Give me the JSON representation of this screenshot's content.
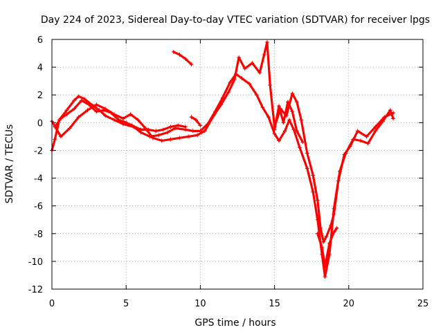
{
  "chart_data": {
    "type": "line",
    "title": "Day 224 of 2023, Sidereal Day-to-day VTEC variation (SDTVAR) for receiver lpgs",
    "xlabel": "GPS time / hours",
    "ylabel": "SDTVAR / TECUs",
    "xlim": [
      0,
      25
    ],
    "ylim": [
      -12,
      6
    ],
    "xticks": [
      0,
      5,
      10,
      15,
      20,
      25
    ],
    "yticks": [
      -12,
      -10,
      -8,
      -6,
      -4,
      -2,
      0,
      2,
      4,
      6
    ],
    "grid": true,
    "marker": "+",
    "color": "#ff0000",
    "series": [
      {
        "name": "trace-1",
        "points": [
          [
            0,
            -2.0
          ],
          [
            0.2,
            -1.2
          ],
          [
            0.5,
            0.2
          ],
          [
            1.0,
            0.9
          ],
          [
            1.5,
            1.6
          ],
          [
            1.8,
            1.9
          ],
          [
            2.2,
            1.7
          ],
          [
            2.8,
            1.2
          ],
          [
            3.2,
            0.9
          ],
          [
            3.6,
            0.5
          ],
          [
            4.2,
            0.2
          ],
          [
            4.8,
            -0.1
          ],
          [
            5.5,
            -0.3
          ],
          [
            6.0,
            -0.7
          ],
          [
            6.6,
            -1.0
          ],
          [
            7.2,
            -0.9
          ],
          [
            7.8,
            -0.7
          ],
          [
            8.3,
            -0.4
          ],
          [
            9.0,
            -0.5
          ],
          [
            9.5,
            -0.6
          ],
          [
            10.0,
            -0.6
          ],
          [
            10.5,
            -0.1
          ],
          [
            11.0,
            0.8
          ],
          [
            11.5,
            1.8
          ],
          [
            12.0,
            2.9
          ],
          [
            12.4,
            3.5
          ],
          [
            12.8,
            3.2
          ],
          [
            13.3,
            2.8
          ],
          [
            13.8,
            2.0
          ],
          [
            14.2,
            1.1
          ],
          [
            14.6,
            0.4
          ],
          [
            15.0,
            -0.8
          ],
          [
            15.3,
            -1.3
          ],
          [
            15.7,
            -0.6
          ],
          [
            16.0,
            0.2
          ],
          [
            16.3,
            -0.5
          ],
          [
            16.7,
            -1.8
          ],
          [
            17.2,
            -3.3
          ],
          [
            17.6,
            -5.0
          ],
          [
            17.9,
            -7.0
          ],
          [
            18.2,
            -9.5
          ],
          [
            18.4,
            -11.1
          ],
          [
            18.7,
            -9.5
          ],
          [
            19.0,
            -6.2
          ],
          [
            19.4,
            -3.5
          ],
          [
            19.8,
            -2.2
          ],
          [
            20.3,
            -1.2
          ],
          [
            20.8,
            -1.3
          ],
          [
            21.3,
            -1.5
          ],
          [
            21.8,
            -0.6
          ],
          [
            22.3,
            0.1
          ],
          [
            22.8,
            0.9
          ],
          [
            23.0,
            0.3
          ]
        ]
      },
      {
        "name": "trace-2",
        "points": [
          [
            0,
            0.1
          ],
          [
            0.6,
            -1.0
          ],
          [
            1.2,
            -0.4
          ],
          [
            1.8,
            0.4
          ],
          [
            2.4,
            0.9
          ],
          [
            3.0,
            1.3
          ],
          [
            3.6,
            1.0
          ],
          [
            4.2,
            0.6
          ],
          [
            4.8,
            0.3
          ],
          [
            5.3,
            0.6
          ],
          [
            5.8,
            0.2
          ],
          [
            6.3,
            -0.4
          ],
          [
            6.8,
            -1.1
          ],
          [
            7.4,
            -1.3
          ],
          [
            8.0,
            -1.2
          ],
          [
            8.6,
            -1.1
          ],
          [
            9.2,
            -1.0
          ],
          [
            9.8,
            -0.9
          ],
          [
            10.3,
            -0.6
          ],
          [
            10.9,
            0.5
          ],
          [
            11.4,
            1.3
          ],
          [
            11.9,
            2.2
          ],
          [
            12.3,
            3.1
          ],
          [
            12.6,
            4.7
          ],
          [
            13.0,
            3.9
          ],
          [
            13.5,
            4.3
          ],
          [
            14.0,
            3.6
          ],
          [
            14.3,
            4.9
          ],
          [
            14.5,
            5.8
          ],
          [
            14.7,
            2.7
          ],
          [
            15.0,
            -0.3
          ],
          [
            15.4,
            1.0
          ],
          [
            15.8,
            0.5
          ],
          [
            16.2,
            2.1
          ],
          [
            16.5,
            1.5
          ],
          [
            16.8,
            0.2
          ],
          [
            17.2,
            -2.2
          ],
          [
            17.6,
            -3.8
          ],
          [
            17.9,
            -5.6
          ],
          [
            18.1,
            -7.6
          ],
          [
            18.3,
            -8.6
          ],
          [
            18.5,
            -8.2
          ],
          [
            18.8,
            -7.4
          ],
          [
            19.0,
            -6.6
          ],
          [
            19.3,
            -4.2
          ],
          [
            19.7,
            -2.3
          ],
          [
            20.1,
            -1.7
          ],
          [
            20.6,
            -0.6
          ],
          [
            21.2,
            -1.0
          ],
          [
            21.8,
            -0.3
          ],
          [
            22.4,
            0.4
          ],
          [
            23.0,
            0.7
          ]
        ]
      },
      {
        "name": "trace-3",
        "points": [
          [
            8.2,
            5.1
          ],
          [
            8.6,
            4.9
          ],
          [
            9.0,
            4.6
          ],
          [
            9.4,
            4.2
          ]
        ]
      },
      {
        "name": "trace-4",
        "points": [
          [
            9.4,
            0.4
          ],
          [
            9.7,
            0.2
          ],
          [
            10.0,
            -0.2
          ]
        ]
      },
      {
        "name": "trace-5",
        "points": [
          [
            0.2,
            -0.3
          ],
          [
            0.6,
            0.3
          ],
          [
            1.0,
            0.6
          ],
          [
            1.5,
            1.0
          ],
          [
            2.0,
            1.6
          ],
          [
            2.5,
            1.3
          ],
          [
            3.0,
            0.8
          ],
          [
            3.5,
            0.9
          ],
          [
            4.0,
            0.7
          ],
          [
            4.5,
            0.2
          ],
          [
            5.0,
            0.0
          ],
          [
            5.4,
            -0.2
          ],
          [
            6.0,
            -0.5
          ],
          [
            6.5,
            -0.5
          ],
          [
            7.0,
            -0.6
          ],
          [
            7.5,
            -0.5
          ],
          [
            8.0,
            -0.3
          ],
          [
            8.5,
            -0.2
          ],
          [
            9.0,
            -0.3
          ]
        ]
      },
      {
        "name": "trace-6",
        "points": [
          [
            15.0,
            -0.5
          ],
          [
            15.3,
            1.2
          ],
          [
            15.6,
            0.0
          ],
          [
            15.9,
            1.5
          ],
          [
            16.2,
            0.8
          ],
          [
            16.5,
            -0.6
          ],
          [
            16.9,
            -1.4
          ]
        ]
      },
      {
        "name": "trace-7",
        "points": [
          [
            17.9,
            -8.0
          ],
          [
            18.2,
            -9.0
          ],
          [
            18.4,
            -10.4
          ],
          [
            18.7,
            -8.7
          ],
          [
            19.0,
            -7.9
          ],
          [
            19.2,
            -7.6
          ]
        ]
      }
    ]
  }
}
